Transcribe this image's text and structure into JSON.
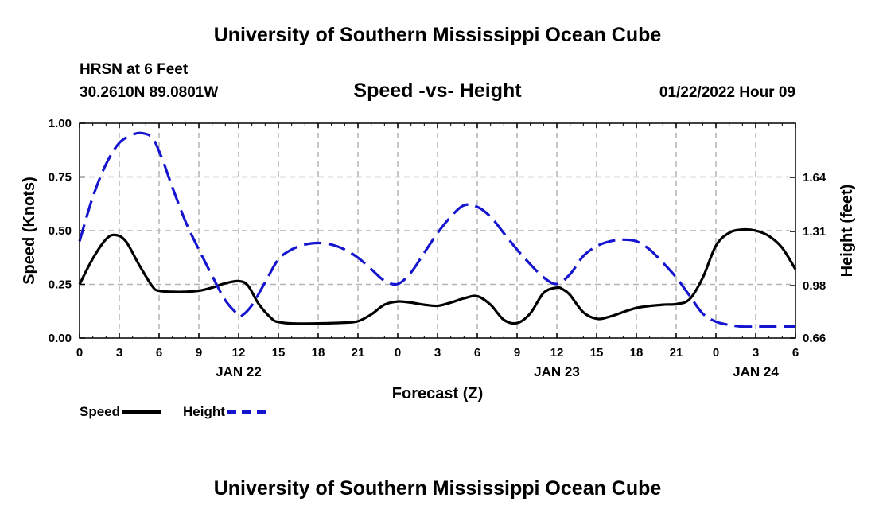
{
  "header": {
    "title": "University of Southern Mississippi Ocean Cube",
    "station_name": "HRSN at 6 Feet",
    "station_coords": "30.2610N  89.0801W",
    "subtitle": "Speed -vs- Height",
    "datestamp": "01/22/2022 Hour 09",
    "footer_title": "University of Southern Mississippi Ocean Cube"
  },
  "legend": {
    "speed_label": "Speed",
    "height_label": "Height"
  },
  "chart_data": {
    "type": "line",
    "title": "Speed -vs- Height",
    "xlabel": "Forecast (Z)",
    "ylabel": "Speed (Knots)",
    "y2label": "Height (feet)",
    "xlim": [
      0,
      54
    ],
    "ylim": [
      0,
      1.0
    ],
    "y2lim": [
      0.66,
      1.97
    ],
    "x_ticks": [
      0,
      3,
      6,
      9,
      12,
      15,
      18,
      21,
      24,
      27,
      30,
      33,
      36,
      39,
      42,
      45,
      48,
      51,
      54
    ],
    "x_tick_labels": [
      "0",
      "3",
      "6",
      "9",
      "12",
      "15",
      "18",
      "21",
      "0",
      "3",
      "6",
      "9",
      "12",
      "15",
      "18",
      "21",
      "0",
      "3",
      "6"
    ],
    "y_ticks": [
      0,
      0.25,
      0.5,
      0.75,
      1.0
    ],
    "y_tick_labels": [
      "0.00",
      "0.25",
      "0.50",
      "0.75",
      "1.00"
    ],
    "y2_ticks": [
      0.66,
      0.98,
      1.31,
      1.64
    ],
    "y2_tick_labels": [
      "0.66",
      "0.98",
      "1.31",
      "1.64"
    ],
    "date_labels": [
      {
        "x": 12,
        "label": "JAN 22"
      },
      {
        "x": 36,
        "label": "JAN 23"
      },
      {
        "x": 51,
        "label": "JAN 24"
      }
    ],
    "grid": true,
    "series": [
      {
        "name": "Speed",
        "axis": "left",
        "color": "#000000",
        "style": "solid",
        "x": [
          0,
          1,
          2,
          2.7,
          3.5,
          4.5,
          5.5,
          6,
          7,
          8,
          9,
          10,
          11,
          12,
          12.7,
          13.5,
          14.5,
          15,
          16,
          18,
          20,
          21,
          22,
          23,
          24,
          25,
          26,
          27,
          28,
          29,
          30,
          31,
          32,
          33,
          34,
          35,
          36,
          36.5,
          37,
          38,
          39,
          40,
          42,
          44,
          45,
          46,
          47,
          48,
          49,
          50,
          51,
          52,
          53,
          54
        ],
        "y": [
          0.25,
          0.37,
          0.46,
          0.48,
          0.45,
          0.34,
          0.24,
          0.22,
          0.215,
          0.215,
          0.22,
          0.235,
          0.255,
          0.265,
          0.245,
          0.16,
          0.09,
          0.075,
          0.068,
          0.068,
          0.072,
          0.078,
          0.11,
          0.155,
          0.17,
          0.165,
          0.155,
          0.15,
          0.165,
          0.185,
          0.195,
          0.155,
          0.085,
          0.07,
          0.115,
          0.21,
          0.235,
          0.225,
          0.2,
          0.12,
          0.09,
          0.1,
          0.14,
          0.155,
          0.158,
          0.18,
          0.28,
          0.43,
          0.49,
          0.505,
          0.5,
          0.475,
          0.42,
          0.32
        ]
      },
      {
        "name": "Height",
        "axis": "right",
        "color": "#1515d0",
        "style": "dashed",
        "x": [
          0,
          1,
          2,
          3,
          4,
          4.7,
          5.5,
          6.2,
          7,
          8,
          9,
          10,
          11,
          12,
          12.3,
          13,
          14,
          15,
          16,
          17,
          18,
          19,
          20,
          21,
          22,
          23,
          24,
          25,
          26,
          27,
          28,
          29,
          30,
          31,
          32,
          33,
          34,
          35,
          36,
          37,
          38,
          39,
          40,
          41,
          42,
          43,
          44,
          45,
          46,
          47,
          48,
          49,
          50,
          51,
          52,
          53,
          54
        ],
        "y": [
          1.25,
          1.52,
          1.72,
          1.85,
          1.9,
          1.91,
          1.88,
          1.76,
          1.58,
          1.37,
          1.2,
          1.04,
          0.89,
          0.8,
          0.8,
          0.86,
          1.0,
          1.14,
          1.2,
          1.23,
          1.24,
          1.23,
          1.2,
          1.15,
          1.08,
          1.01,
          0.99,
          1.06,
          1.18,
          1.3,
          1.4,
          1.47,
          1.46,
          1.4,
          1.3,
          1.2,
          1.11,
          1.03,
          0.99,
          1.05,
          1.16,
          1.22,
          1.25,
          1.26,
          1.25,
          1.2,
          1.12,
          1.03,
          0.92,
          0.81,
          0.76,
          0.74,
          0.73,
          0.73,
          0.73,
          0.73,
          0.73
        ]
      }
    ]
  }
}
